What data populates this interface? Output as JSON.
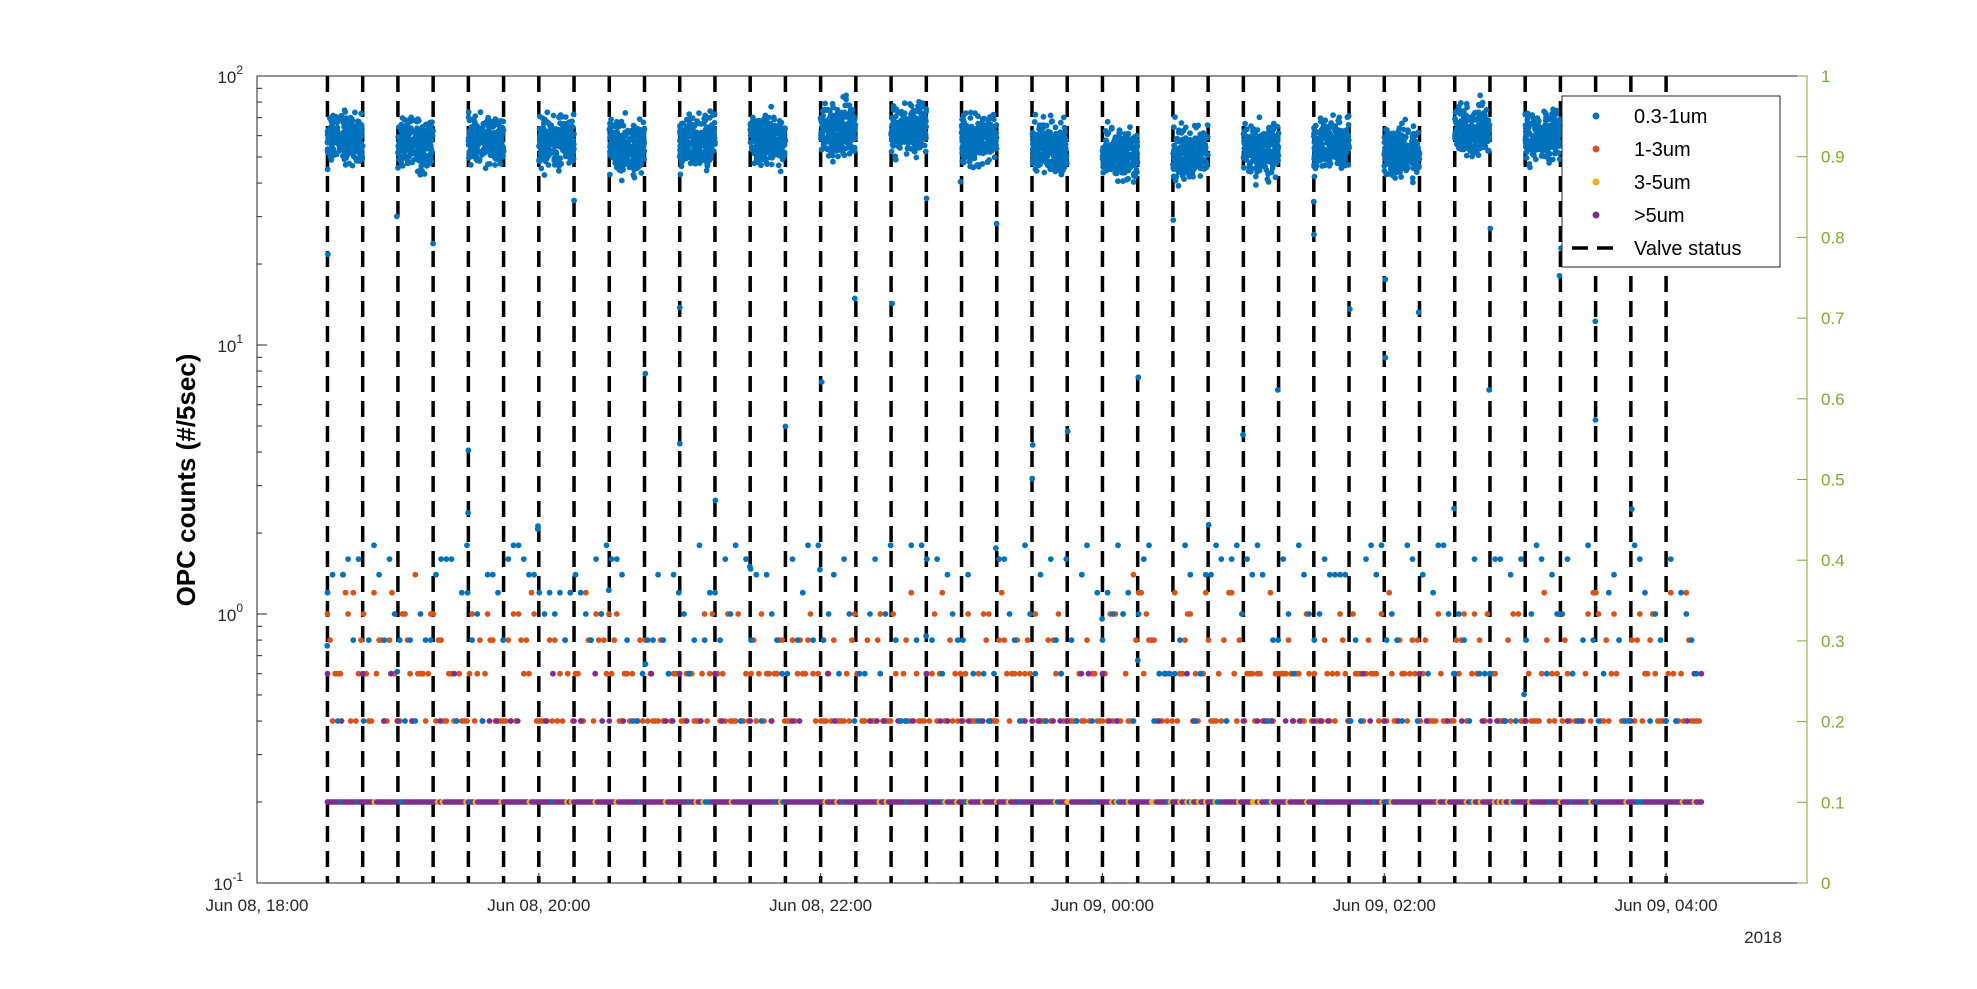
{
  "chart_data": {
    "type": "scatter",
    "title": "",
    "ylabel": "OPC counts (#/5sec)",
    "y_scale": "log",
    "ylim": [
      0.1,
      100
    ],
    "y_ticks": [
      {
        "value": 0.1,
        "base": "10",
        "exp": "-1"
      },
      {
        "value": 1,
        "base": "10",
        "exp": "0"
      },
      {
        "value": 10,
        "base": "10",
        "exp": "1"
      },
      {
        "value": 100,
        "base": "10",
        "exp": "2"
      }
    ],
    "y2lim": [
      0,
      1
    ],
    "y2_ticks": [
      "0",
      "0.1",
      "0.2",
      "0.3",
      "0.4",
      "0.5",
      "0.6",
      "0.7",
      "0.8",
      "0.9",
      "1"
    ],
    "y2_color": "#77AC30",
    "xlim": [
      "2018-06-08 18:00",
      "2018-06-09 05:00"
    ],
    "x_ticks": [
      {
        "time": "2018-06-08 18:00",
        "label": "Jun 08, 18:00"
      },
      {
        "time": "2018-06-08 20:00",
        "label": "Jun 08, 20:00"
      },
      {
        "time": "2018-06-08 22:00",
        "label": "Jun 08, 22:00"
      },
      {
        "time": "2018-06-09 00:00",
        "label": "Jun 09, 00:00"
      },
      {
        "time": "2018-06-09 02:00",
        "label": "Jun 09, 02:00"
      },
      {
        "time": "2018-06-09 04:00",
        "label": "Jun 09, 04:00"
      }
    ],
    "x_year_label": "2018",
    "legend_position": "top-right",
    "series": [
      {
        "name": "0.3-1um",
        "color": "#0072BD",
        "marker": "dot",
        "high_cluster_level": 58,
        "low_levels": [
          0.2,
          0.4,
          0.6,
          0.8,
          1.0,
          1.2,
          1.4,
          1.6,
          1.8
        ]
      },
      {
        "name": "1-3um",
        "color": "#D95319",
        "marker": "dot",
        "levels": [
          0.2,
          0.4,
          0.6,
          0.8,
          1.0,
          1.2,
          1.4
        ]
      },
      {
        "name": "3-5um",
        "color": "#EDB120",
        "marker": "dot",
        "levels": [
          0.2
        ]
      },
      {
        "name": ">5um",
        "color": "#7E2F8E",
        "marker": "dot",
        "levels": [
          0.2,
          0.4,
          0.6
        ]
      },
      {
        "name": "Valve status",
        "color": "#000000",
        "style": "dashed",
        "switch_times": [
          "2018-06-08 18:30",
          "2018-06-08 18:45",
          "2018-06-08 19:00",
          "2018-06-08 19:15",
          "2018-06-08 19:30",
          "2018-06-08 19:45",
          "2018-06-08 20:00",
          "2018-06-08 20:15",
          "2018-06-08 20:30",
          "2018-06-08 20:45",
          "2018-06-08 21:00",
          "2018-06-08 21:15",
          "2018-06-08 21:30",
          "2018-06-08 21:45",
          "2018-06-08 22:00",
          "2018-06-08 22:15",
          "2018-06-08 22:30",
          "2018-06-08 22:45",
          "2018-06-08 23:00",
          "2018-06-08 23:15",
          "2018-06-08 23:30",
          "2018-06-08 23:45",
          "2018-06-09 00:00",
          "2018-06-09 00:15",
          "2018-06-09 00:30",
          "2018-06-09 00:45",
          "2018-06-09 01:00",
          "2018-06-09 01:15",
          "2018-06-09 01:30",
          "2018-06-09 01:45",
          "2018-06-09 02:00",
          "2018-06-09 02:15",
          "2018-06-09 02:30",
          "2018-06-09 02:45",
          "2018-06-09 03:00",
          "2018-06-09 03:15",
          "2018-06-09 03:30",
          "2018-06-09 03:45",
          "2018-06-09 04:00"
        ]
      }
    ],
    "high_cluster_windows": [
      {
        "start": "2018-06-08 18:30",
        "end": "2018-06-08 18:45",
        "level": 58
      },
      {
        "start": "2018-06-08 19:00",
        "end": "2018-06-08 19:15",
        "level": 56
      },
      {
        "start": "2018-06-08 19:30",
        "end": "2018-06-08 19:45",
        "level": 58
      },
      {
        "start": "2018-06-08 20:00",
        "end": "2018-06-08 20:15",
        "level": 57
      },
      {
        "start": "2018-06-08 20:30",
        "end": "2018-06-08 20:45",
        "level": 55
      },
      {
        "start": "2018-06-08 21:00",
        "end": "2018-06-08 21:15",
        "level": 57
      },
      {
        "start": "2018-06-08 21:30",
        "end": "2018-06-08 21:45",
        "level": 58
      },
      {
        "start": "2018-06-08 22:00",
        "end": "2018-06-08 22:15",
        "level": 63
      },
      {
        "start": "2018-06-08 22:30",
        "end": "2018-06-08 22:45",
        "level": 64
      },
      {
        "start": "2018-06-08 23:00",
        "end": "2018-06-08 23:15",
        "level": 58
      },
      {
        "start": "2018-06-08 23:30",
        "end": "2018-06-08 23:45",
        "level": 54
      },
      {
        "start": "2018-06-09 00:00",
        "end": "2018-06-09 00:15",
        "level": 52
      },
      {
        "start": "2018-06-09 00:30",
        "end": "2018-06-09 00:45",
        "level": 52
      },
      {
        "start": "2018-06-09 01:00",
        "end": "2018-06-09 01:15",
        "level": 53
      },
      {
        "start": "2018-06-09 01:30",
        "end": "2018-06-09 01:45",
        "level": 56
      },
      {
        "start": "2018-06-09 02:00",
        "end": "2018-06-09 02:15",
        "level": 52
      },
      {
        "start": "2018-06-09 02:30",
        "end": "2018-06-09 02:45",
        "level": 63
      },
      {
        "start": "2018-06-09 03:00",
        "end": "2018-06-09 03:15",
        "level": 60
      },
      {
        "start": "2018-06-09 03:30",
        "end": "2018-06-09 03:45",
        "level": 58
      }
    ],
    "data_end": "2018-06-09 04:15"
  }
}
